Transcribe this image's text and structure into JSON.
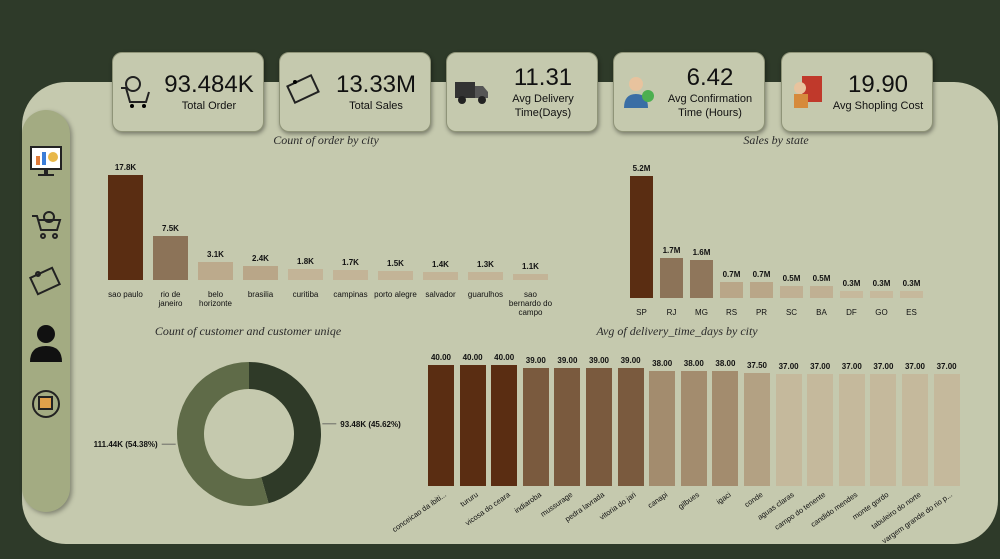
{
  "kpis": [
    {
      "value": "93.484K",
      "label": "Total Order"
    },
    {
      "value": "13.33M",
      "label": "Total Sales"
    },
    {
      "value": "11.31",
      "label": "Avg Delivery Time(Days)"
    },
    {
      "value": "6.42",
      "label": "Avg Confirmation Time (Hours)"
    },
    {
      "value": "19.90",
      "label": "Avg Shopling Cost"
    }
  ],
  "chart_data": [
    {
      "type": "bar",
      "title": "Count of order by city",
      "categories": [
        "sao paulo",
        "rio de janeiro",
        "belo horizonte",
        "brasilia",
        "curitiba",
        "campinas",
        "porto alegre",
        "salvador",
        "guarulhos",
        "sao bernardo do campo"
      ],
      "values": [
        17800,
        7500,
        3100,
        2400,
        1800,
        1700,
        1500,
        1400,
        1300,
        1100
      ],
      "value_labels": [
        "17.8K",
        "7.5K",
        "3.1K",
        "2.4K",
        "1.8K",
        "1.7K",
        "1.5K",
        "1.4K",
        "1.3K",
        "1.1K"
      ],
      "colors": [
        "#5a2d12",
        "#8c7358",
        "#bcaa8c",
        "#b9a688",
        "#c3b497",
        "#c3b497",
        "#c3b497",
        "#c3b497",
        "#c3b497",
        "#c3b497"
      ]
    },
    {
      "type": "bar",
      "title": "Sales by state",
      "categories": [
        "SP",
        "RJ",
        "MG",
        "RS",
        "PR",
        "SC",
        "BA",
        "DF",
        "GO",
        "ES"
      ],
      "values": [
        5200000,
        1700000,
        1600000,
        700000,
        700000,
        500000,
        500000,
        300000,
        300000,
        300000
      ],
      "value_labels": [
        "5.2M",
        "1.7M",
        "1.6M",
        "0.7M",
        "0.7M",
        "0.5M",
        "0.5M",
        "0.3M",
        "0.3M",
        "0.3M"
      ],
      "colors": [
        "#5a2d12",
        "#8c7358",
        "#8f765b",
        "#b9a688",
        "#b9a688",
        "#c0b093",
        "#c0b093",
        "#c6b99c",
        "#c6b99c",
        "#c6b99c"
      ]
    },
    {
      "type": "donut",
      "title": "Count of customer and customer uniqe",
      "values": [
        93480,
        111440
      ],
      "value_labels": [
        "93.48K (45.62%)",
        "111.44K (54.38%)"
      ],
      "colors": [
        "#2f3a28",
        "#5f6b48"
      ]
    },
    {
      "type": "bar",
      "title": "Avg of delivery_time_days by city",
      "categories": [
        "conceicao da ibiti...",
        "tururu",
        "vicosa do ceara",
        "indiaroba",
        "mussurage",
        "pedra lavrada",
        "vitoria do jari",
        "canapi",
        "gilbues",
        "igaci",
        "conde",
        "aguas claras",
        "campo do tenente",
        "candido mendes",
        "monte gordo",
        "tabuleiro do norte",
        "vargem grande do rio p..."
      ],
      "values": [
        40,
        40,
        40,
        39,
        39,
        39,
        39,
        38,
        38,
        38,
        37.5,
        37,
        37,
        37,
        37,
        37,
        37
      ],
      "value_labels": [
        "40.00",
        "40.00",
        "40.00",
        "39.00",
        "39.00",
        "39.00",
        "39.00",
        "38.00",
        "38.00",
        "38.00",
        "37.50",
        "37.00",
        "37.00",
        "37.00",
        "37.00",
        "37.00",
        "37.00"
      ],
      "colors": [
        "#5a2d12",
        "#5a2d12",
        "#5a2d12",
        "#7a5a3e",
        "#7a5a3e",
        "#7a5a3e",
        "#7a5a3e",
        "#a38c6e",
        "#a38c6e",
        "#a38c6e",
        "#b3a183",
        "#c5b99c",
        "#c5b99c",
        "#c5b99c",
        "#c5b99c",
        "#c5b99c",
        "#c5b99c"
      ]
    }
  ]
}
